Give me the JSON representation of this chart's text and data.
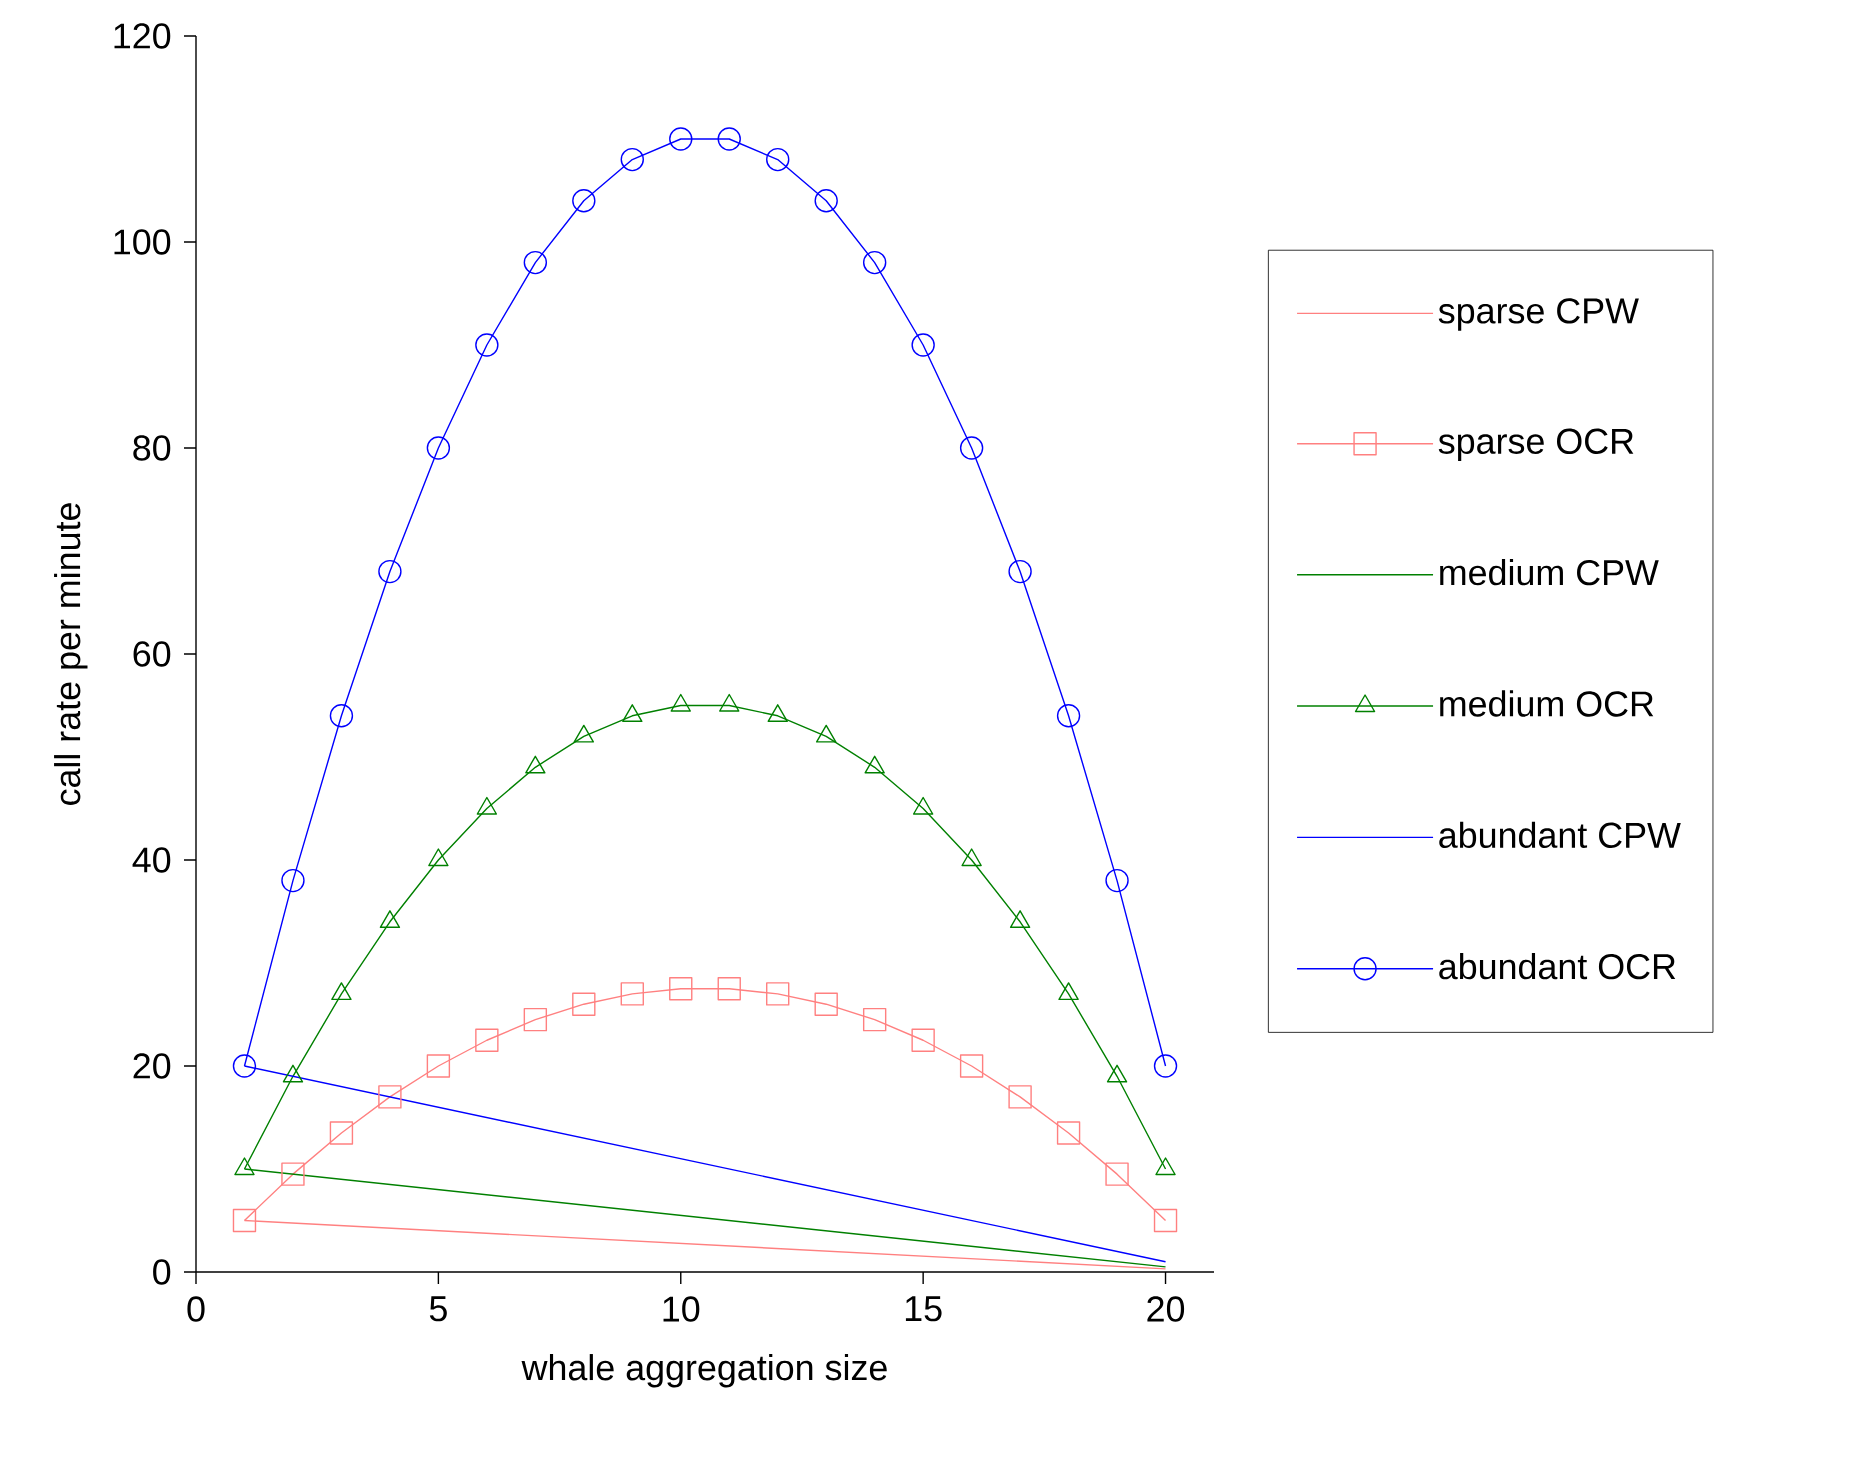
{
  "chart_data": {
    "type": "line",
    "xlabel": "whale aggregation size",
    "ylabel": "call rate per minute",
    "xlim": [
      0,
      21
    ],
    "ylim": [
      0,
      120
    ],
    "xticks": [
      0,
      5,
      10,
      15,
      20
    ],
    "yticks": [
      0,
      20,
      40,
      60,
      80,
      100,
      120
    ],
    "grid": false,
    "legend": "right",
    "line_style": "solid",
    "series": [
      {
        "name": "sparse CPW",
        "color": "#ff8080",
        "x": [
          1,
          20
        ],
        "values": [
          5,
          0.3
        ]
      },
      {
        "name": "sparse OCR",
        "color": "#ff8080",
        "marker": "square",
        "x": [
          1,
          2,
          3,
          4,
          5,
          6,
          7,
          8,
          9,
          10,
          11,
          12,
          13,
          14,
          15,
          16,
          17,
          18,
          19,
          20
        ],
        "values": [
          5,
          9.5,
          13.5,
          17,
          20,
          22.5,
          24.5,
          26,
          27,
          27.5,
          27.5,
          27,
          26,
          24.5,
          22.5,
          20,
          17,
          13.5,
          9.5,
          5
        ]
      },
      {
        "name": "medium CPW",
        "color": "#008000",
        "x": [
          1,
          20
        ],
        "values": [
          10,
          0.5
        ]
      },
      {
        "name": "medium OCR",
        "color": "#008000",
        "marker": "triangle",
        "x": [
          1,
          2,
          3,
          4,
          5,
          6,
          7,
          8,
          9,
          10,
          11,
          12,
          13,
          14,
          15,
          16,
          17,
          18,
          19,
          20
        ],
        "values": [
          10,
          19,
          27,
          34,
          40,
          45,
          49,
          52,
          54,
          55,
          55,
          54,
          52,
          49,
          45,
          40,
          34,
          27,
          19,
          10
        ]
      },
      {
        "name": "abundant CPW",
        "color": "#0000ff",
        "x": [
          1,
          20
        ],
        "values": [
          20,
          1
        ]
      },
      {
        "name": "abundant OCR",
        "color": "#0000ff",
        "marker": "circle",
        "x": [
          1,
          2,
          3,
          4,
          5,
          6,
          7,
          8,
          9,
          10,
          11,
          12,
          13,
          14,
          15,
          16,
          17,
          18,
          19,
          20
        ],
        "values": [
          20,
          38,
          54,
          68,
          80,
          90,
          98,
          104,
          108,
          110,
          110,
          108,
          104,
          98,
          90,
          80,
          68,
          54,
          38,
          20
        ]
      }
    ]
  }
}
